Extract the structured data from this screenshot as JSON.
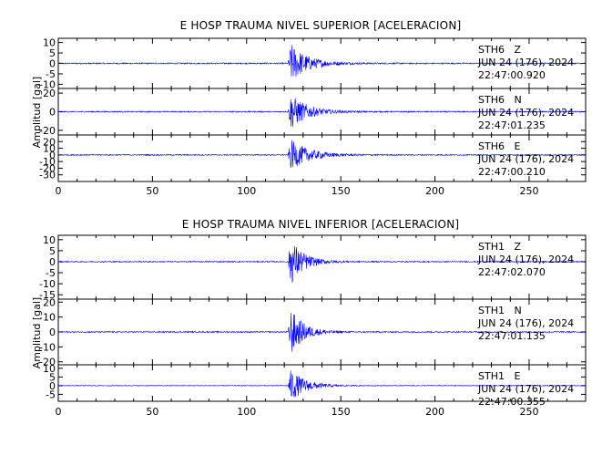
{
  "chart_data": [
    {
      "type": "line",
      "title": "E HOSP TRAUMA NIVEL SUPERIOR [ACELERACION]",
      "xlabel": "",
      "ylabel": "Amplitud [gal]",
      "xlim": [
        0,
        280
      ],
      "x_ticks": [
        0,
        50,
        100,
        150,
        200,
        250
      ],
      "series": [
        {
          "name": "STH6 Z",
          "station": "STH6",
          "component": "Z",
          "date": "JUN 24 (176), 2024",
          "start_time": "22:47:00.920",
          "ylim": [
            -12,
            12
          ],
          "y_ticks": [
            10,
            5,
            0,
            -5,
            -10
          ],
          "event_onset_s": 122,
          "peak_amplitude_gal": 11,
          "decay_s": 9,
          "noise_gal": 0.3
        },
        {
          "name": "STH6 N",
          "station": "STH6",
          "component": "N",
          "date": "JUN 24 (176), 2024",
          "start_time": "22:47:01.235",
          "ylim": [
            -25,
            25
          ],
          "y_ticks": [
            20,
            0,
            -20
          ],
          "event_onset_s": 122,
          "peak_amplitude_gal": 22,
          "decay_s": 9,
          "noise_gal": 0.6
        },
        {
          "name": "STH6 E",
          "station": "STH6",
          "component": "E",
          "date": "JUN 24 (176), 2024",
          "start_time": "22:47:00.210",
          "ylim": [
            -40,
            30
          ],
          "y_ticks": [
            20,
            10,
            0,
            -10,
            -20,
            -30
          ],
          "event_onset_s": 122,
          "peak_amplitude_gal": 26,
          "decay_s": 10,
          "noise_gal": 0.8
        }
      ]
    },
    {
      "type": "line",
      "title": "E HOSP TRAUMA NIVEL INFERIOR [ACELERACION]",
      "xlabel": "",
      "ylabel": "Amplitud [gal]",
      "xlim": [
        0,
        280
      ],
      "x_ticks": [
        0,
        50,
        100,
        150,
        200,
        250
      ],
      "series": [
        {
          "name": "STH1 Z",
          "station": "STH1",
          "component": "Z",
          "date": "JUN 24 (176), 2024",
          "start_time": "22:47:02.070",
          "ylim": [
            -17,
            12
          ],
          "y_ticks": [
            10,
            5,
            0,
            -5,
            -10,
            -15
          ],
          "event_onset_s": 122,
          "peak_amplitude_gal": 13,
          "decay_s": 7,
          "noise_gal": 0.25
        },
        {
          "name": "STH1 N",
          "station": "STH1",
          "component": "N",
          "date": "JUN 24 (176), 2024",
          "start_time": "22:47:01.135",
          "ylim": [
            -22,
            22
          ],
          "y_ticks": [
            20,
            10,
            0,
            -10,
            -20
          ],
          "event_onset_s": 122,
          "peak_amplitude_gal": 19,
          "decay_s": 7,
          "noise_gal": 0.4
        },
        {
          "name": "STH1 E",
          "station": "STH1",
          "component": "E",
          "date": "JUN 24 (176), 2024",
          "start_time": "22:47:00.355",
          "ylim": [
            -9,
            12
          ],
          "y_ticks": [
            10,
            5,
            0,
            -5
          ],
          "event_onset_s": 122,
          "peak_amplitude_gal": 11,
          "decay_s": 8,
          "noise_gal": 0.2
        }
      ]
    }
  ]
}
